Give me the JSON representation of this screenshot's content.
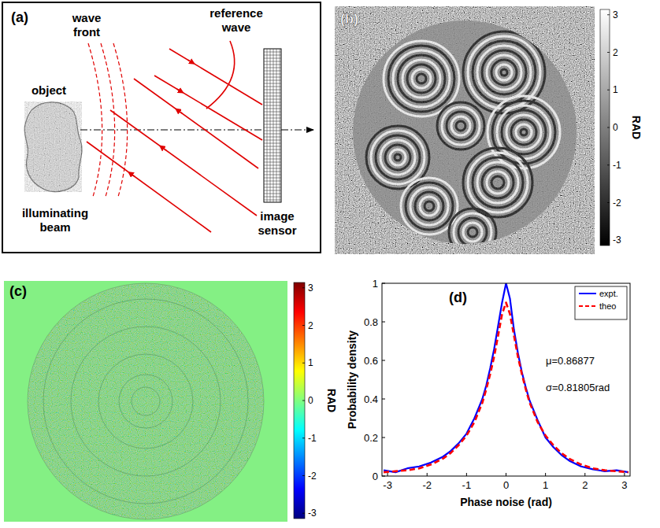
{
  "chart_data": [
    {
      "type": "diagram",
      "title": "(a)",
      "labels": {
        "object": "object",
        "wave_front": "wave front",
        "reference_wave": "reference wave",
        "illuminating_beam": "illuminating beam",
        "image_sensor": "image sensor"
      }
    },
    {
      "type": "image",
      "title": "(b)",
      "color": "gray",
      "colorbar": {
        "range": [
          -3.1416,
          3.1416
        ],
        "ticks": [
          -3,
          -2,
          -1,
          0,
          1,
          2,
          3
        ],
        "label": "RAD"
      }
    },
    {
      "type": "image",
      "title": "(c)",
      "color": "jet",
      "colorbar": {
        "range": [
          -3.1416,
          3.1416
        ],
        "ticks": [
          -3,
          -2,
          -1,
          0,
          1,
          2,
          3
        ],
        "label": "RAD"
      }
    },
    {
      "type": "line",
      "title": "(d)",
      "x": [
        -3.1,
        -2.8,
        -2.5,
        -2.2,
        -1.9,
        -1.6,
        -1.4,
        -1.2,
        -1.0,
        -0.8,
        -0.6,
        -0.5,
        -0.4,
        -0.3,
        -0.2,
        -0.1,
        0,
        0.1,
        0.2,
        0.3,
        0.4,
        0.5,
        0.6,
        0.8,
        1.0,
        1.2,
        1.4,
        1.6,
        1.9,
        2.2,
        2.5,
        2.8,
        3.1
      ],
      "series": [
        {
          "name": "expt.",
          "color": "#0000ff",
          "line_style": "solid",
          "values": [
            0.03,
            0.02,
            0.04,
            0.05,
            0.07,
            0.1,
            0.13,
            0.17,
            0.22,
            0.3,
            0.4,
            0.47,
            0.56,
            0.66,
            0.78,
            0.9,
            1.0,
            0.92,
            0.76,
            0.64,
            0.54,
            0.46,
            0.39,
            0.29,
            0.2,
            0.15,
            0.11,
            0.08,
            0.05,
            0.035,
            0.025,
            0.03,
            0.02
          ]
        },
        {
          "name": "theo",
          "color": "#ff0000",
          "line_style": "dashed",
          "values": [
            0.02,
            0.025,
            0.03,
            0.04,
            0.06,
            0.09,
            0.12,
            0.16,
            0.21,
            0.28,
            0.38,
            0.45,
            0.53,
            0.62,
            0.73,
            0.84,
            0.9,
            0.84,
            0.73,
            0.62,
            0.53,
            0.45,
            0.38,
            0.28,
            0.21,
            0.16,
            0.12,
            0.09,
            0.06,
            0.04,
            0.03,
            0.025,
            0.02
          ]
        }
      ],
      "x_label": "Phase noise (rad)",
      "y_label": "Probability density",
      "xlim": [
        -3.1416,
        3.1416
      ],
      "ylim": [
        0,
        1
      ],
      "xticks": [
        -3,
        -2,
        -1,
        0,
        1,
        2,
        3
      ],
      "yticks": [
        0,
        0.2,
        0.4,
        0.6,
        0.8,
        1
      ],
      "annotations": [
        "μ=0.86877",
        "σ=0.81805rad"
      ],
      "legend": "top-right",
      "grid": false
    }
  ]
}
